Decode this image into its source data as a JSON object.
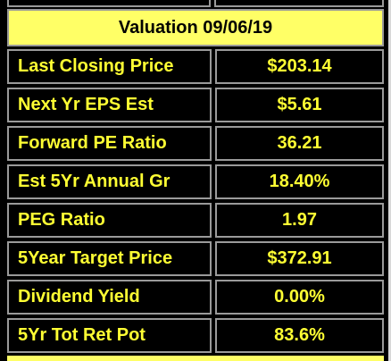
{
  "header": {
    "title": "Valuation 09/06/19"
  },
  "rows": [
    {
      "label": "Last Closing Price",
      "value": "$203.14"
    },
    {
      "label": "Next Yr EPS Est",
      "value": "$5.61"
    },
    {
      "label": "Forward PE Ratio",
      "value": "36.21"
    },
    {
      "label": "Est 5Yr Annual Gr",
      "value": "18.40%"
    },
    {
      "label": "PEG Ratio",
      "value": "1.97"
    },
    {
      "label": "5Year Target Price",
      "value": "$372.91"
    },
    {
      "label": "Dividend Yield",
      "value": "0.00%"
    },
    {
      "label": "5Yr Tot Ret Pot",
      "value": "83.6%"
    }
  ],
  "colors": {
    "header_bg": "#ffff66",
    "cell_bg": "#000000",
    "cell_text": "#ffff33",
    "border": "#9a9a9a"
  }
}
